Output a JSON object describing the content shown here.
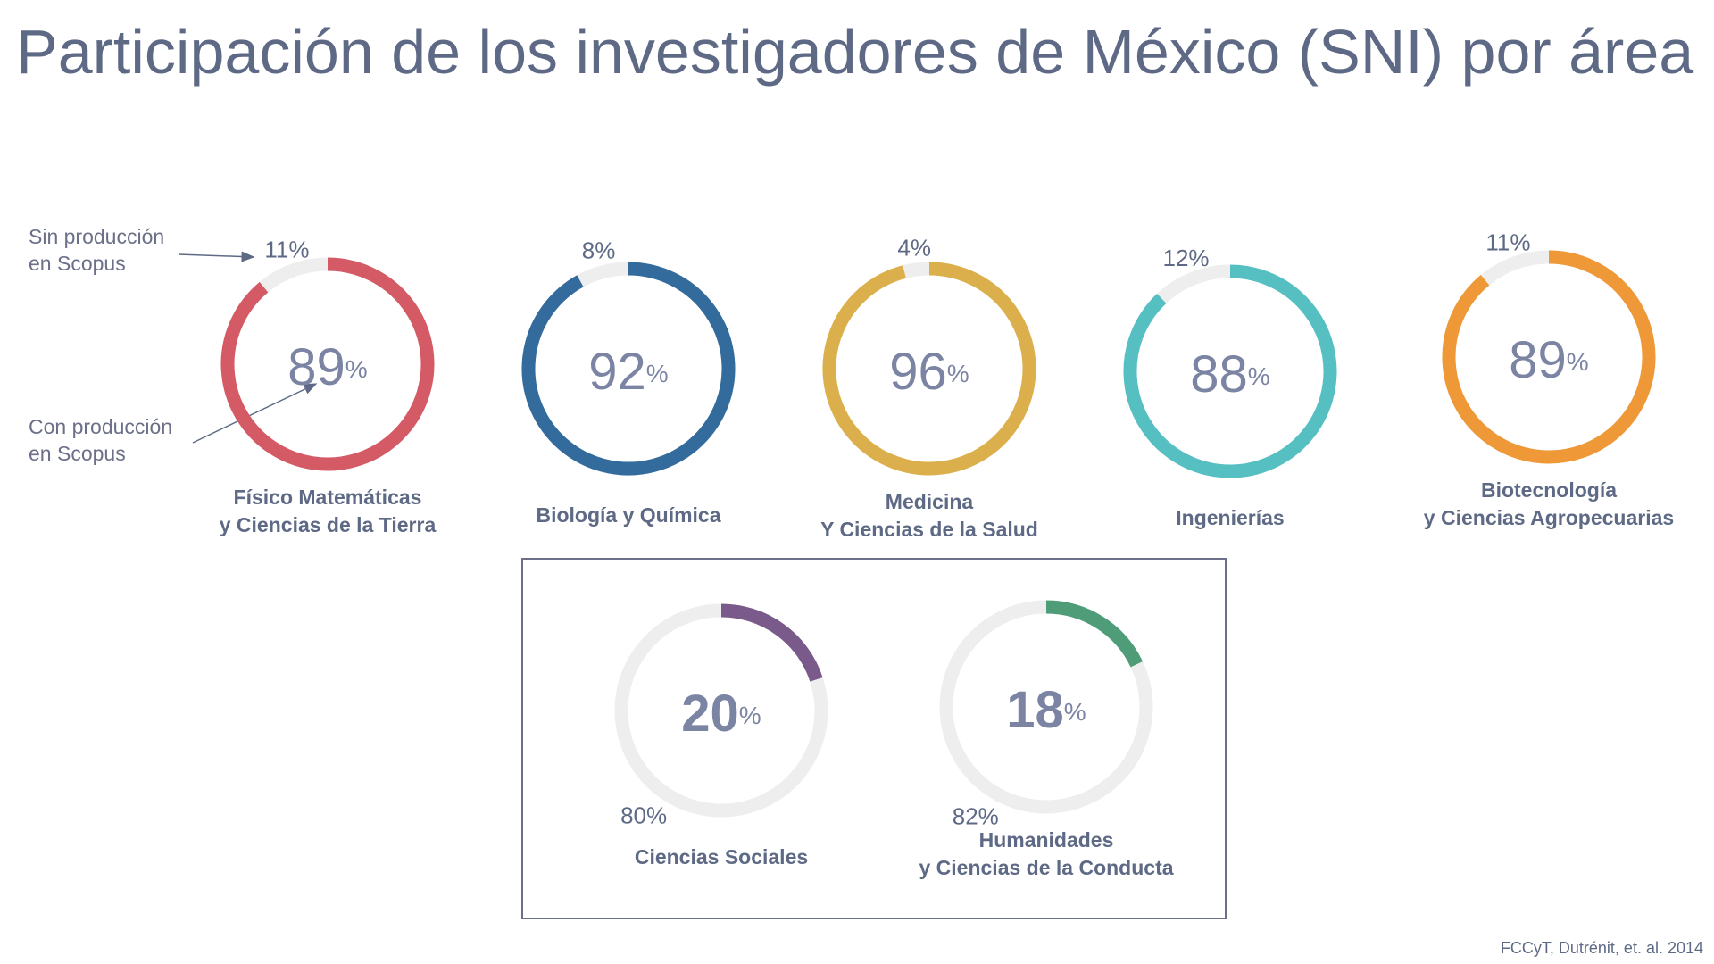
{
  "title": "Participación de los investigadores de México (SNI) por área",
  "annotations": {
    "without": [
      "Sin producción",
      "en Scopus"
    ],
    "with": [
      "Con producción",
      "en Scopus"
    ]
  },
  "source": "FCCyT, Dutrénit, et. al. 2014",
  "chart_data": [
    {
      "type": "donut",
      "title": [
        "Físico Matemáticas",
        "y Ciencias de la Tierra"
      ],
      "values": [
        89,
        11
      ],
      "value_labels": [
        "89%",
        "11%"
      ],
      "colors": [
        "#d45a66",
        "#eeeeee"
      ]
    },
    {
      "type": "donut",
      "title": [
        "Biología y Química"
      ],
      "values": [
        92,
        8
      ],
      "value_labels": [
        "92%",
        "8%"
      ],
      "colors": [
        "#336b9c",
        "#eeeeee"
      ]
    },
    {
      "type": "donut",
      "title": [
        "Medicina",
        "Y Ciencias de la Salud"
      ],
      "values": [
        96,
        4
      ],
      "value_labels": [
        "96%",
        "4%"
      ],
      "colors": [
        "#dbb04c",
        "#eeeeee"
      ]
    },
    {
      "type": "donut",
      "title": [
        "Ingenierías"
      ],
      "values": [
        88,
        12
      ],
      "value_labels": [
        "88%",
        "12%"
      ],
      "colors": [
        "#56bfc2",
        "#eeeeee"
      ]
    },
    {
      "type": "donut",
      "title": [
        "Biotecnología",
        "y Ciencias Agropecuarias"
      ],
      "values": [
        89,
        11
      ],
      "value_labels": [
        "89%",
        "11%"
      ],
      "colors": [
        "#ee9838",
        "#eeeeee"
      ]
    },
    {
      "type": "donut",
      "title": [
        "Ciencias Sociales"
      ],
      "values": [
        20,
        80
      ],
      "value_labels": [
        "20%",
        "80%"
      ],
      "colors": [
        "#7a5a8a",
        "#eeeeee"
      ]
    },
    {
      "type": "donut",
      "title": [
        "Humanidades",
        "y Ciencias de la Conducta"
      ],
      "values": [
        18,
        82
      ],
      "value_labels": [
        "18%",
        "82%"
      ],
      "colors": [
        "#4f9c78",
        "#eeeeee"
      ]
    }
  ]
}
